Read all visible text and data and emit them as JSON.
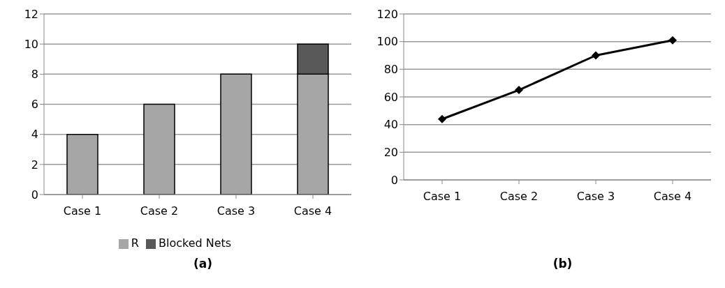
{
  "chart_data": [
    {
      "type": "bar",
      "title": "(a)",
      "categories": [
        "Case 1",
        "Case 2",
        "Case 3",
        "Case 4"
      ],
      "stacked": true,
      "series": [
        {
          "name": "R",
          "color": "#a6a6a6",
          "values": [
            4,
            6,
            8,
            8
          ]
        },
        {
          "name": "Blocked Nets",
          "color": "#595959",
          "values": [
            null,
            null,
            null,
            2
          ]
        }
      ],
      "ylim": [
        0,
        12
      ],
      "yticks": [
        0,
        2,
        4,
        6,
        8,
        10,
        12
      ],
      "grid": "y",
      "legend": "bottom"
    },
    {
      "type": "line",
      "title": "(b)",
      "categories": [
        "Case 1",
        "Case 2",
        "Case 3",
        "Case 4"
      ],
      "series": [
        {
          "color": "#000000",
          "values": [
            44,
            65,
            90,
            101
          ]
        }
      ],
      "ylim": [
        0,
        120
      ],
      "yticks": [
        0,
        20,
        40,
        60,
        80,
        100,
        120
      ],
      "grid": "y",
      "legend": false,
      "marker": "diamond",
      "line_style": "solid"
    }
  ]
}
